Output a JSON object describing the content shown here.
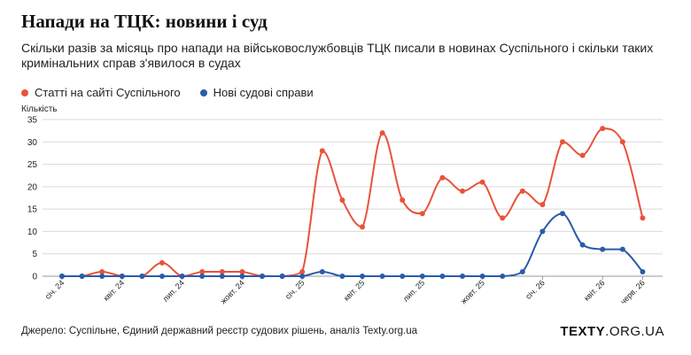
{
  "header": {
    "title": "Напади на ТЦК: новини і суд",
    "subtitle": "Скільки разів за місяць про напади на військовослужбовців ТЦК писали в новинах Суспільного і скільки таких кримінальних справ з'явилося в судах"
  },
  "footer": {
    "source": "Джерело: Суспільне, Єдиний державний реєстр судових рішень, аналіз Texty.org.ua",
    "logo_bold": "TEXTY",
    "logo_rest": ".ORG.UA"
  },
  "colors": {
    "articles": "#e8533a",
    "cases": "#2a5caa",
    "grid": "#d9d9d9"
  },
  "chart_data": {
    "type": "line",
    "ylabel": "Кількість",
    "ylim": [
      0,
      35
    ],
    "yticks": [
      0,
      5,
      10,
      15,
      20,
      25,
      30,
      35
    ],
    "grid": true,
    "legend_position": "top-left",
    "x": [
      "січ. 24",
      "лют. 24",
      "бер. 24",
      "квіт. 24",
      "трав. 24",
      "черв. 24",
      "лип. 24",
      "серп. 24",
      "вер. 24",
      "жовт. 24",
      "лист. 24",
      "груд. 24",
      "січ. 25",
      "лют. 25",
      "бер. 25",
      "квіт. 25",
      "трав. 25",
      "черв. 25",
      "лип. 25",
      "серп. 25",
      "вер. 25",
      "жовт. 25",
      "лист. 25",
      "груд. 25",
      "січ. 26",
      "лют. 26",
      "бер. 26",
      "квіт. 26",
      "трав. 26",
      "черв. 26"
    ],
    "xtick_labels": [
      "січ. 24",
      "квіт. 24",
      "лип. 24",
      "жовт. 24",
      "січ. 25",
      "квіт. 25",
      "лип. 25",
      "жовт. 25",
      "січ. 26",
      "квіт. 26",
      "черв. 26"
    ],
    "series": [
      {
        "name": "Статті на сайті Суспільного",
        "values": [
          0,
          0,
          1,
          0,
          0,
          3,
          0,
          1,
          1,
          1,
          0,
          0,
          1,
          28,
          17,
          11,
          32,
          17,
          14,
          22,
          19,
          21,
          13,
          19,
          16,
          30,
          27,
          33,
          30,
          13
        ]
      },
      {
        "name": "Нові судові справи",
        "values": [
          0,
          0,
          0,
          0,
          0,
          0,
          0,
          0,
          0,
          0,
          0,
          0,
          0,
          1,
          0,
          0,
          0,
          0,
          0,
          0,
          0,
          0,
          0,
          1,
          10,
          14,
          7,
          6,
          6,
          1
        ]
      }
    ]
  }
}
